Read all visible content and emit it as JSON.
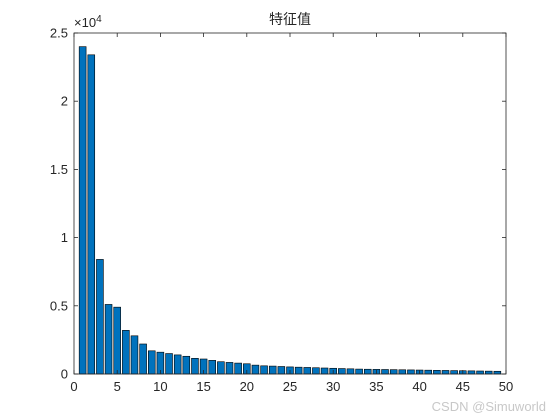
{
  "chart_data": {
    "type": "bar",
    "title": "特征值",
    "xlabel": "",
    "ylabel": "",
    "y_exponent_label": "×10",
    "y_exponent_power": "4",
    "xlim": [
      0,
      50
    ],
    "ylim": [
      0,
      2.5
    ],
    "grid": false,
    "x_ticks": [
      {
        "value": 0,
        "label": "0"
      },
      {
        "value": 5,
        "label": "5"
      },
      {
        "value": 10,
        "label": "10"
      },
      {
        "value": 15,
        "label": "15"
      },
      {
        "value": 20,
        "label": "20"
      },
      {
        "value": 25,
        "label": "25"
      },
      {
        "value": 30,
        "label": "30"
      },
      {
        "value": 35,
        "label": "35"
      },
      {
        "value": 40,
        "label": "40"
      },
      {
        "value": 45,
        "label": "45"
      },
      {
        "value": 50,
        "label": "50"
      }
    ],
    "y_ticks": [
      {
        "value": 0,
        "label": "0"
      },
      {
        "value": 0.5,
        "label": "0.5"
      },
      {
        "value": 1,
        "label": "1"
      },
      {
        "value": 1.5,
        "label": "1.5"
      },
      {
        "value": 2,
        "label": "2"
      },
      {
        "value": 2.5,
        "label": "2.5"
      }
    ],
    "bar_color": "#0072BD",
    "x": [
      1,
      2,
      3,
      4,
      5,
      6,
      7,
      8,
      9,
      10,
      11,
      12,
      13,
      14,
      15,
      16,
      17,
      18,
      19,
      20,
      21,
      22,
      23,
      24,
      25,
      26,
      27,
      28,
      29,
      30,
      31,
      32,
      33,
      34,
      35,
      36,
      37,
      38,
      39,
      40,
      41,
      42,
      43,
      44,
      45,
      46,
      47,
      48,
      49
    ],
    "values": [
      2.4,
      2.34,
      0.84,
      0.51,
      0.49,
      0.32,
      0.28,
      0.22,
      0.17,
      0.16,
      0.15,
      0.14,
      0.13,
      0.115,
      0.11,
      0.1,
      0.09,
      0.085,
      0.08,
      0.075,
      0.065,
      0.06,
      0.058,
      0.055,
      0.052,
      0.05,
      0.048,
      0.046,
      0.044,
      0.042,
      0.04,
      0.038,
      0.036,
      0.035,
      0.034,
      0.033,
      0.032,
      0.031,
      0.03,
      0.029,
      0.028,
      0.027,
      0.026,
      0.025,
      0.024,
      0.023,
      0.022,
      0.021,
      0.02
    ]
  },
  "watermark": "CSDN @Simuworld"
}
